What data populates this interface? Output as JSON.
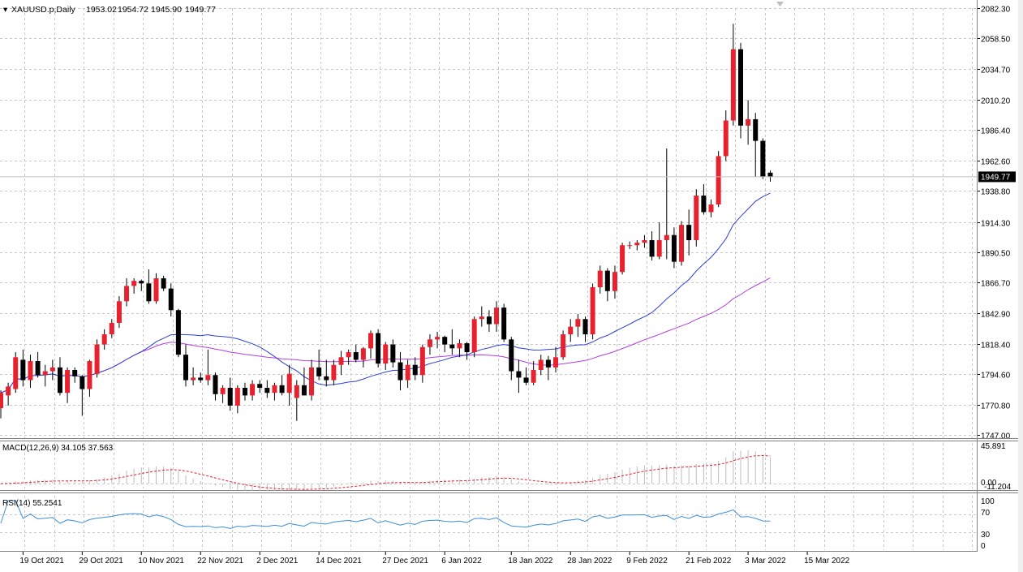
{
  "header": {
    "symbol": "XAUUSD.p,Daily",
    "open": "1953.02",
    "high": "1954.72",
    "low": "1945.90",
    "close": "1949.77",
    "current_price_label": "1949.77"
  },
  "colors": {
    "bull_candle": "#e8212e",
    "bear_candle": "#000000",
    "ma_fast": "#2d3fd8",
    "ma_slow": "#b03fe0",
    "macd_signal": "#e8212e",
    "macd_hist": "#bdbdbd",
    "rsi_line": "#3a8fdc",
    "grid": "#c8c8c8"
  },
  "macd_panel": {
    "label": "MACD(12,26,9) 34.105 37.563",
    "axis_top": "45.891",
    "axis_zero": "0.00",
    "axis_bottom": "-11.204"
  },
  "rsi_panel": {
    "label": "RSI(14) 55.2541",
    "ticks": [
      "100",
      "70",
      "30",
      "0"
    ]
  },
  "chart_data": {
    "type": "candlestick",
    "symbol": "XAUUSD.p",
    "timeframe": "Daily",
    "ylim": [
      1747.0,
      2082.3
    ],
    "y_ticks": [
      "2082.30",
      "2058.50",
      "2034.70",
      "2010.20",
      "1986.40",
      "1962.60",
      "1938.80",
      "1914.30",
      "1890.50",
      "1866.70",
      "1842.90",
      "1818.40",
      "1794.60",
      "1770.80",
      "1747.00"
    ],
    "x_labels": [
      "19 Oct 2021",
      "29 Oct 2021",
      "10 Nov 2021",
      "22 Nov 2021",
      "2 Dec 2021",
      "14 Dec 2021",
      "27 Dec 2021",
      "6 Jan 2022",
      "18 Jan 2022",
      "28 Jan 2022",
      "9 Feb 2022",
      "21 Feb 2022",
      "3 Mar 2022",
      "15 Mar 2022"
    ],
    "x_label_bar_index": [
      3,
      11,
      19,
      27,
      35,
      43,
      52,
      60,
      69,
      77,
      85,
      93,
      101,
      109
    ],
    "candles": [
      {
        "o": 1768,
        "h": 1782,
        "l": 1760,
        "c": 1780
      },
      {
        "o": 1778,
        "h": 1788,
        "l": 1770,
        "c": 1785
      },
      {
        "o": 1783,
        "h": 1812,
        "l": 1780,
        "c": 1808
      },
      {
        "o": 1806,
        "h": 1814,
        "l": 1785,
        "c": 1790
      },
      {
        "o": 1790,
        "h": 1810,
        "l": 1784,
        "c": 1805
      },
      {
        "o": 1805,
        "h": 1812,
        "l": 1792,
        "c": 1794
      },
      {
        "o": 1794,
        "h": 1802,
        "l": 1785,
        "c": 1797
      },
      {
        "o": 1797,
        "h": 1806,
        "l": 1790,
        "c": 1800
      },
      {
        "o": 1800,
        "h": 1808,
        "l": 1778,
        "c": 1780
      },
      {
        "o": 1780,
        "h": 1800,
        "l": 1772,
        "c": 1798
      },
      {
        "o": 1798,
        "h": 1800,
        "l": 1788,
        "c": 1793
      },
      {
        "o": 1793,
        "h": 1794,
        "l": 1762,
        "c": 1783
      },
      {
        "o": 1783,
        "h": 1806,
        "l": 1777,
        "c": 1805
      },
      {
        "o": 1795,
        "h": 1822,
        "l": 1792,
        "c": 1818
      },
      {
        "o": 1818,
        "h": 1830,
        "l": 1814,
        "c": 1826
      },
      {
        "o": 1826,
        "h": 1838,
        "l": 1823,
        "c": 1835
      },
      {
        "o": 1835,
        "h": 1856,
        "l": 1831,
        "c": 1852
      },
      {
        "o": 1852,
        "h": 1870,
        "l": 1848,
        "c": 1864
      },
      {
        "o": 1864,
        "h": 1870,
        "l": 1858,
        "c": 1868
      },
      {
        "o": 1868,
        "h": 1869,
        "l": 1860,
        "c": 1866
      },
      {
        "o": 1866,
        "h": 1877,
        "l": 1850,
        "c": 1852
      },
      {
        "o": 1852,
        "h": 1874,
        "l": 1850,
        "c": 1870
      },
      {
        "o": 1870,
        "h": 1872,
        "l": 1860,
        "c": 1862
      },
      {
        "o": 1862,
        "h": 1866,
        "l": 1840,
        "c": 1845
      },
      {
        "o": 1845,
        "h": 1846,
        "l": 1808,
        "c": 1810
      },
      {
        "o": 1810,
        "h": 1818,
        "l": 1785,
        "c": 1790
      },
      {
        "o": 1790,
        "h": 1800,
        "l": 1786,
        "c": 1792
      },
      {
        "o": 1792,
        "h": 1796,
        "l": 1788,
        "c": 1790
      },
      {
        "o": 1790,
        "h": 1814,
        "l": 1786,
        "c": 1794
      },
      {
        "o": 1794,
        "h": 1796,
        "l": 1774,
        "c": 1779
      },
      {
        "o": 1779,
        "h": 1786,
        "l": 1772,
        "c": 1784
      },
      {
        "o": 1784,
        "h": 1792,
        "l": 1766,
        "c": 1770
      },
      {
        "o": 1770,
        "h": 1786,
        "l": 1764,
        "c": 1784
      },
      {
        "o": 1784,
        "h": 1788,
        "l": 1774,
        "c": 1778
      },
      {
        "o": 1778,
        "h": 1790,
        "l": 1774,
        "c": 1787
      },
      {
        "o": 1787,
        "h": 1790,
        "l": 1780,
        "c": 1784
      },
      {
        "o": 1784,
        "h": 1790,
        "l": 1776,
        "c": 1780
      },
      {
        "o": 1780,
        "h": 1788,
        "l": 1774,
        "c": 1786
      },
      {
        "o": 1786,
        "h": 1794,
        "l": 1778,
        "c": 1780
      },
      {
        "o": 1780,
        "h": 1802,
        "l": 1770,
        "c": 1795
      },
      {
        "o": 1776,
        "h": 1790,
        "l": 1758,
        "c": 1786
      },
      {
        "o": 1786,
        "h": 1800,
        "l": 1778,
        "c": 1778
      },
      {
        "o": 1778,
        "h": 1806,
        "l": 1774,
        "c": 1800
      },
      {
        "o": 1800,
        "h": 1814,
        "l": 1790,
        "c": 1793
      },
      {
        "o": 1793,
        "h": 1806,
        "l": 1785,
        "c": 1790
      },
      {
        "o": 1790,
        "h": 1806,
        "l": 1786,
        "c": 1802
      },
      {
        "o": 1802,
        "h": 1813,
        "l": 1794,
        "c": 1808
      },
      {
        "o": 1808,
        "h": 1814,
        "l": 1802,
        "c": 1812
      },
      {
        "o": 1812,
        "h": 1818,
        "l": 1804,
        "c": 1806
      },
      {
        "o": 1806,
        "h": 1816,
        "l": 1800,
        "c": 1815
      },
      {
        "o": 1815,
        "h": 1829,
        "l": 1807,
        "c": 1827
      },
      {
        "o": 1827,
        "h": 1830,
        "l": 1800,
        "c": 1803
      },
      {
        "o": 1803,
        "h": 1820,
        "l": 1798,
        "c": 1818
      },
      {
        "o": 1818,
        "h": 1822,
        "l": 1800,
        "c": 1804
      },
      {
        "o": 1804,
        "h": 1812,
        "l": 1782,
        "c": 1790
      },
      {
        "o": 1790,
        "h": 1806,
        "l": 1784,
        "c": 1802
      },
      {
        "o": 1802,
        "h": 1808,
        "l": 1790,
        "c": 1794
      },
      {
        "o": 1794,
        "h": 1818,
        "l": 1788,
        "c": 1816
      },
      {
        "o": 1816,
        "h": 1826,
        "l": 1810,
        "c": 1822
      },
      {
        "o": 1822,
        "h": 1828,
        "l": 1815,
        "c": 1824
      },
      {
        "o": 1824,
        "h": 1825,
        "l": 1812,
        "c": 1818
      },
      {
        "o": 1818,
        "h": 1830,
        "l": 1810,
        "c": 1815
      },
      {
        "o": 1815,
        "h": 1822,
        "l": 1808,
        "c": 1819
      },
      {
        "o": 1819,
        "h": 1820,
        "l": 1806,
        "c": 1812
      },
      {
        "o": 1812,
        "h": 1840,
        "l": 1808,
        "c": 1838
      },
      {
        "o": 1838,
        "h": 1848,
        "l": 1832,
        "c": 1840
      },
      {
        "o": 1840,
        "h": 1845,
        "l": 1828,
        "c": 1834
      },
      {
        "o": 1834,
        "h": 1852,
        "l": 1828,
        "c": 1847
      },
      {
        "o": 1847,
        "h": 1850,
        "l": 1820,
        "c": 1822
      },
      {
        "o": 1822,
        "h": 1824,
        "l": 1790,
        "c": 1797
      },
      {
        "o": 1797,
        "h": 1806,
        "l": 1780,
        "c": 1792
      },
      {
        "o": 1792,
        "h": 1800,
        "l": 1786,
        "c": 1788
      },
      {
        "o": 1788,
        "h": 1805,
        "l": 1786,
        "c": 1798
      },
      {
        "o": 1798,
        "h": 1810,
        "l": 1794,
        "c": 1806
      },
      {
        "o": 1806,
        "h": 1809,
        "l": 1790,
        "c": 1800
      },
      {
        "o": 1800,
        "h": 1816,
        "l": 1796,
        "c": 1808
      },
      {
        "o": 1808,
        "h": 1829,
        "l": 1806,
        "c": 1826
      },
      {
        "o": 1826,
        "h": 1838,
        "l": 1820,
        "c": 1832
      },
      {
        "o": 1832,
        "h": 1842,
        "l": 1824,
        "c": 1838
      },
      {
        "o": 1838,
        "h": 1840,
        "l": 1820,
        "c": 1826
      },
      {
        "o": 1826,
        "h": 1866,
        "l": 1822,
        "c": 1863
      },
      {
        "o": 1863,
        "h": 1880,
        "l": 1858,
        "c": 1876
      },
      {
        "o": 1876,
        "h": 1878,
        "l": 1852,
        "c": 1860
      },
      {
        "o": 1860,
        "h": 1880,
        "l": 1854,
        "c": 1875
      },
      {
        "o": 1875,
        "h": 1898,
        "l": 1873,
        "c": 1896
      },
      {
        "o": 1896,
        "h": 1899,
        "l": 1893,
        "c": 1896
      },
      {
        "o": 1896,
        "h": 1900,
        "l": 1892,
        "c": 1898
      },
      {
        "o": 1898,
        "h": 1904,
        "l": 1894,
        "c": 1900
      },
      {
        "o": 1900,
        "h": 1907,
        "l": 1884,
        "c": 1887
      },
      {
        "o": 1887,
        "h": 1914,
        "l": 1885,
        "c": 1900
      },
      {
        "o": 1900,
        "h": 1972,
        "l": 1885,
        "c": 1904
      },
      {
        "o": 1904,
        "h": 1910,
        "l": 1878,
        "c": 1883
      },
      {
        "o": 1883,
        "h": 1915,
        "l": 1880,
        "c": 1912
      },
      {
        "o": 1912,
        "h": 1924,
        "l": 1888,
        "c": 1900
      },
      {
        "o": 1900,
        "h": 1940,
        "l": 1895,
        "c": 1935
      },
      {
        "o": 1935,
        "h": 1944,
        "l": 1920,
        "c": 1922
      },
      {
        "o": 1922,
        "h": 1932,
        "l": 1918,
        "c": 1928
      },
      {
        "o": 1928,
        "h": 1970,
        "l": 1926,
        "c": 1966
      },
      {
        "o": 1966,
        "h": 2002,
        "l": 1962,
        "c": 1994
      },
      {
        "o": 1994,
        "h": 2070,
        "l": 1990,
        "c": 2050
      },
      {
        "o": 2050,
        "h": 2055,
        "l": 1980,
        "c": 1990
      },
      {
        "o": 1990,
        "h": 2010,
        "l": 1975,
        "c": 1995
      },
      {
        "o": 1995,
        "h": 2000,
        "l": 1950,
        "c": 1978
      },
      {
        "o": 1978,
        "h": 1980,
        "l": 1948,
        "c": 1950
      },
      {
        "o": 1953.02,
        "h": 1954.72,
        "l": 1945.9,
        "c": 1949.77
      }
    ],
    "ma_fast_ticks": 1,
    "macd_last": 34.105,
    "macd_signal_last": 37.563,
    "rsi_last": 55.2541,
    "rsi_levels": [
      70,
      30
    ]
  }
}
